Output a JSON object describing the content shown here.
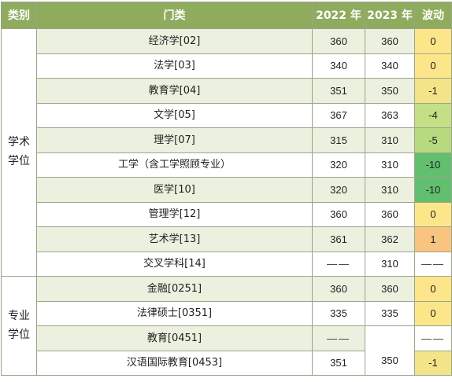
{
  "header": {
    "category": "类别",
    "subject": "门类",
    "year_2022": "2022 年",
    "year_2023": "2023 年",
    "change": "波动"
  },
  "groups": [
    {
      "label": "学术\n学位",
      "rows": [
        {
          "subject": "经济学[02]",
          "y2022": "360",
          "y2023": "360",
          "change": "0",
          "color": "#fde68a"
        },
        {
          "subject": "法学[03]",
          "y2022": "340",
          "y2023": "340",
          "change": "0",
          "color": "#fde68a"
        },
        {
          "subject": "教育学[04]",
          "y2022": "351",
          "y2023": "350",
          "change": "-1",
          "color": "#f3e48a"
        },
        {
          "subject": "文学[05]",
          "y2022": "367",
          "y2023": "363",
          "change": "-4",
          "color": "#c5df85"
        },
        {
          "subject": "理学[07]",
          "y2022": "315",
          "y2023": "310",
          "change": "-5",
          "color": "#b7d97f"
        },
        {
          "subject": "工学（含工学照顾专业）",
          "y2022": "320",
          "y2023": "310",
          "change": "-10",
          "color": "#62bf6f"
        },
        {
          "subject": "医学[10]",
          "y2022": "320",
          "y2023": "310",
          "change": "-10",
          "color": "#62bf6f"
        },
        {
          "subject": "管理学[12]",
          "y2022": "360",
          "y2023": "360",
          "change": "0",
          "color": "#fde68a"
        },
        {
          "subject": "艺术学[13]",
          "y2022": "361",
          "y2023": "362",
          "change": "1",
          "color": "#f9c380"
        },
        {
          "subject": "交叉学科[14]",
          "y2022": "——",
          "y2023": "310",
          "change": "——",
          "color": "#ffffff"
        }
      ]
    },
    {
      "label": "专业\n学位",
      "rows": [
        {
          "subject": "金融[0251]",
          "y2022": "360",
          "y2023": "360",
          "change": "0",
          "color": "#fde68a"
        },
        {
          "subject": "法律硕士[0351]",
          "y2022": "335",
          "y2023": "335",
          "change": "0",
          "color": "#fde68a"
        },
        {
          "subject": "教育[0451]",
          "y2022": "——",
          "y2023": "350",
          "change": "——",
          "color": "#ffffff"
        },
        {
          "subject": "汉语国际教育[0453]",
          "y2022": "351",
          "y2023": "350",
          "change": "-1",
          "color": "#f3e48a"
        }
      ]
    }
  ]
}
